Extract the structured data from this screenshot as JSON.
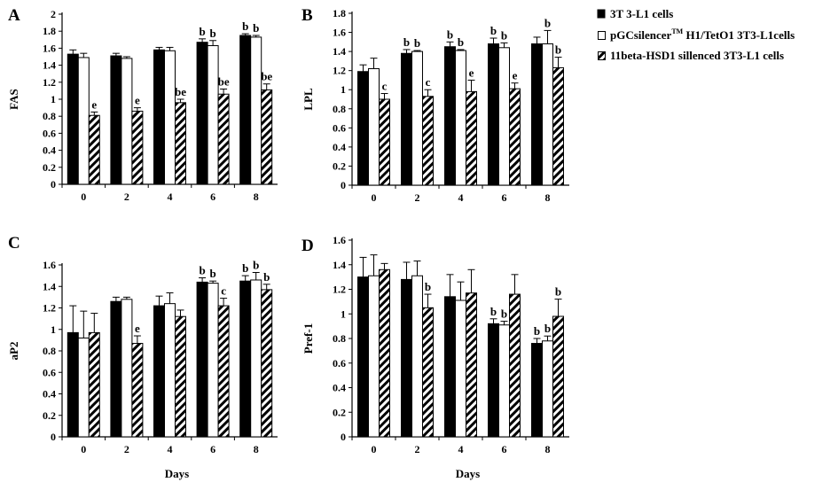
{
  "legend": [
    {
      "label": "3T 3-L1  cells",
      "key": "black"
    },
    {
      "label_main": "pGCsilencer",
      "label_sup": "TM",
      "label_rest": " H1/TetO1 3T3-L1cells",
      "key": "white"
    },
    {
      "label": "11beta-HSD1  sillenced 3T3-L1  cells",
      "key": "hatched"
    }
  ],
  "chart_data": [
    {
      "panel": "A",
      "type": "bar",
      "title": "",
      "ylabel": "FAS",
      "xlabel": "",
      "categories": [
        "0",
        "2",
        "4",
        "6",
        "8"
      ],
      "ylim": [
        0,
        2
      ],
      "yticks": [
        "0",
        "0.2",
        "0.4",
        "0.6",
        "0.8",
        "1",
        "1.2",
        "1.4",
        "1.6",
        "1.8",
        "2"
      ],
      "series": [
        {
          "style": "black",
          "values": [
            1.53,
            1.51,
            1.58,
            1.67,
            1.75
          ],
          "errors": [
            0.05,
            0.03,
            0.03,
            0.04,
            0.02
          ],
          "labels": [
            "",
            "",
            "",
            "b",
            "b"
          ]
        },
        {
          "style": "white",
          "values": [
            1.49,
            1.48,
            1.57,
            1.63,
            1.73
          ],
          "errors": [
            0.05,
            0.02,
            0.04,
            0.06,
            0.02
          ],
          "labels": [
            "",
            "",
            "",
            "b",
            "b"
          ]
        },
        {
          "style": "hatched",
          "values": [
            0.81,
            0.86,
            0.96,
            1.06,
            1.11
          ],
          "errors": [
            0.04,
            0.04,
            0.04,
            0.06,
            0.07
          ],
          "labels": [
            "e",
            "e",
            "be",
            "be",
            "be"
          ]
        }
      ]
    },
    {
      "panel": "B",
      "type": "bar",
      "title": "",
      "ylabel": "LPL",
      "xlabel": "",
      "categories": [
        "0",
        "2",
        "4",
        "6",
        "8"
      ],
      "ylim": [
        0,
        1.8
      ],
      "yticks": [
        "0",
        "0.2",
        "0.4",
        "0.6",
        "0.8",
        "1",
        "1.2",
        "1.4",
        "1.6",
        "1.8"
      ],
      "series": [
        {
          "style": "black",
          "values": [
            1.19,
            1.38,
            1.45,
            1.48,
            1.48
          ],
          "errors": [
            0.07,
            0.04,
            0.05,
            0.06,
            0.07
          ],
          "labels": [
            "",
            "b",
            "b",
            "b",
            ""
          ]
        },
        {
          "style": "white",
          "values": [
            1.22,
            1.4,
            1.41,
            1.44,
            1.48
          ],
          "errors": [
            0.11,
            0.01,
            0.01,
            0.05,
            0.14
          ],
          "labels": [
            "",
            "b",
            "b",
            "b",
            "b"
          ]
        },
        {
          "style": "hatched",
          "values": [
            0.9,
            0.93,
            0.98,
            1.01,
            1.23
          ],
          "errors": [
            0.06,
            0.07,
            0.12,
            0.06,
            0.11
          ],
          "labels": [
            "c",
            "c",
            "e",
            "e",
            "b"
          ]
        }
      ]
    },
    {
      "panel": "C",
      "type": "bar",
      "title": "",
      "ylabel": "aP2",
      "xlabel": "Days",
      "categories": [
        "0",
        "2",
        "4",
        "6",
        "8"
      ],
      "ylim": [
        0,
        1.6
      ],
      "yticks": [
        "0",
        "0.2",
        "0.4",
        "0.6",
        "0.8",
        "1",
        "1.2",
        "1.4",
        "1.6"
      ],
      "series": [
        {
          "style": "black",
          "values": [
            0.97,
            1.26,
            1.22,
            1.44,
            1.45
          ],
          "errors": [
            0.25,
            0.04,
            0.09,
            0.04,
            0.05
          ],
          "labels": [
            "",
            "",
            "",
            "b",
            "b"
          ]
        },
        {
          "style": "white",
          "values": [
            0.92,
            1.28,
            1.24,
            1.43,
            1.46
          ],
          "errors": [
            0.25,
            0.02,
            0.1,
            0.02,
            0.07
          ],
          "labels": [
            "",
            "",
            "",
            "b",
            "b"
          ]
        },
        {
          "style": "hatched",
          "values": [
            0.97,
            0.87,
            1.12,
            1.22,
            1.37
          ],
          "errors": [
            0.18,
            0.07,
            0.06,
            0.07,
            0.05
          ],
          "labels": [
            "",
            "e",
            "",
            "c",
            "b"
          ]
        }
      ]
    },
    {
      "panel": "D",
      "type": "bar",
      "title": "",
      "ylabel": "Pref-1",
      "xlabel": "Days",
      "categories": [
        "0",
        "2",
        "4",
        "6",
        "8"
      ],
      "ylim": [
        0,
        1.6
      ],
      "yticks": [
        "0",
        "0.2",
        "0.4",
        "0.6",
        "0.8",
        "1",
        "1.2",
        "1.4",
        "1.6"
      ],
      "series": [
        {
          "style": "black",
          "values": [
            1.3,
            1.28,
            1.14,
            0.92,
            0.76
          ],
          "errors": [
            0.16,
            0.14,
            0.18,
            0.04,
            0.04
          ],
          "labels": [
            "",
            "",
            "",
            "b",
            "b"
          ]
        },
        {
          "style": "white",
          "values": [
            1.31,
            1.31,
            1.11,
            0.91,
            0.78
          ],
          "errors": [
            0.17,
            0.12,
            0.15,
            0.03,
            0.04
          ],
          "labels": [
            "",
            "",
            "",
            "b",
            "b"
          ]
        },
        {
          "style": "hatched",
          "values": [
            1.36,
            1.05,
            1.17,
            1.16,
            0.98
          ],
          "errors": [
            0.05,
            0.11,
            0.19,
            0.16,
            0.14
          ],
          "labels": [
            "",
            "b",
            "",
            "",
            "b"
          ]
        }
      ]
    }
  ]
}
